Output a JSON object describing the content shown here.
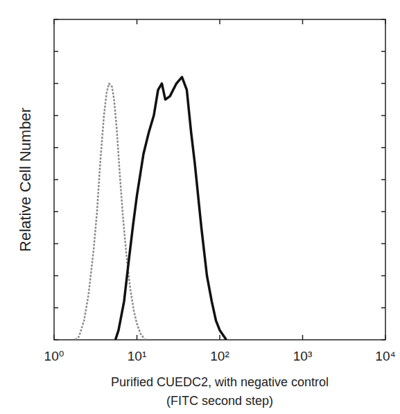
{
  "chart_data": {
    "type": "line",
    "x_label": "Purified CUEDC2, with negative control",
    "x_label_2": "(FITC second step)",
    "y_label": "Relative Cell Number",
    "log": "x",
    "tick_labels": "x",
    "xlim": [
      1,
      10000
    ],
    "xticks": [
      {
        "value": 1,
        "label": "10⁰"
      },
      {
        "value": 10,
        "label": "10¹"
      },
      {
        "value": 100,
        "label": "10²"
      },
      {
        "value": 1000,
        "label": "10³"
      },
      {
        "value": 10000,
        "label": "10⁴"
      }
    ],
    "ylim": [
      0,
      100
    ],
    "yticks": [
      0,
      10,
      20,
      30,
      40,
      50,
      60,
      70,
      80,
      90,
      100
    ],
    "series": [
      {
        "color": "#8a8a8a",
        "line_style": "dashed",
        "x": [
          1.8,
          2,
          2.3,
          2.6,
          3,
          3.3,
          3.6,
          4,
          4.3,
          4.6,
          5,
          5.3,
          5.7,
          6.2,
          6.8,
          7.5,
          8.3,
          9.2,
          10,
          11,
          12.5
        ],
        "values": [
          0,
          1,
          6,
          14,
          28,
          40,
          55,
          70,
          77,
          80,
          79,
          75,
          66,
          52,
          38,
          26,
          16,
          9,
          5,
          2,
          0
        ]
      },
      {
        "color": "#111111",
        "line_style": "solid",
        "x": [
          5.5,
          6,
          7,
          8,
          9,
          10,
          12,
          14,
          16,
          18,
          20,
          22,
          25,
          30,
          35,
          40,
          45,
          50,
          60,
          70,
          80,
          90,
          100,
          120
        ],
        "values": [
          0,
          3,
          12,
          25,
          36,
          45,
          58,
          65,
          70,
          78,
          80,
          75,
          76,
          80,
          82,
          78,
          65,
          55,
          35,
          20,
          12,
          6,
          3,
          0
        ]
      }
    ]
  }
}
